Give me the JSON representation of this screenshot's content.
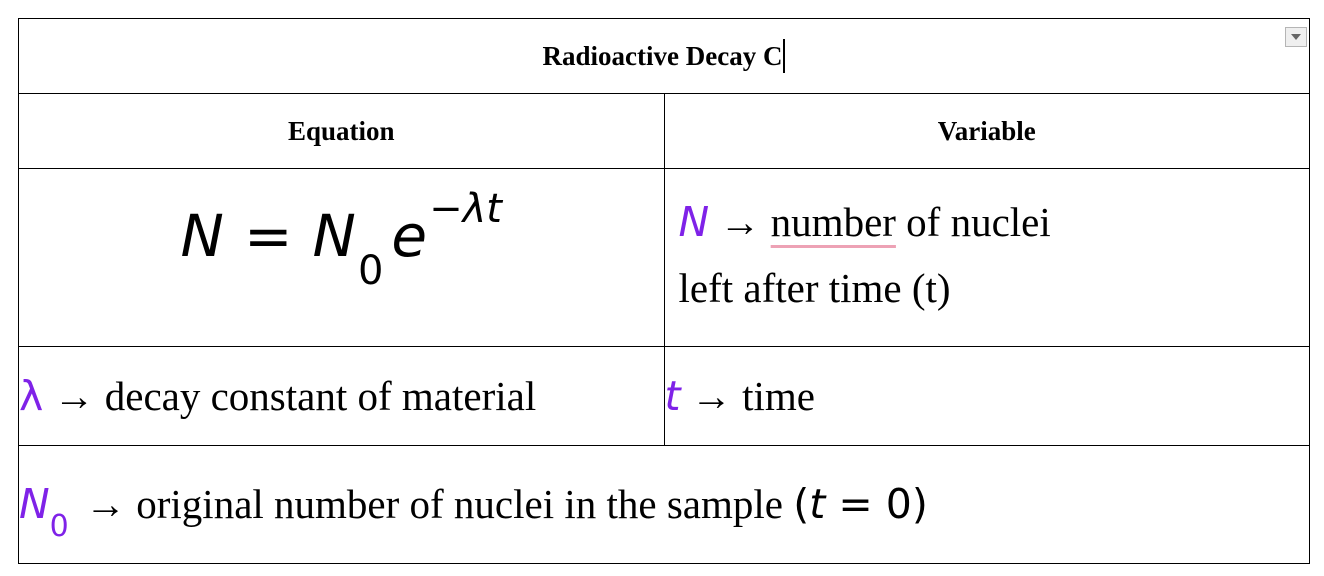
{
  "table": {
    "title": "Radioactive Decay C",
    "headers": {
      "equation": "Equation",
      "variable": "Variable"
    },
    "equation": {
      "lhs": "N",
      "equals": "=",
      "n": "N",
      "n_sub": "0",
      "base": "e",
      "exponent": "−λt"
    },
    "variables": {
      "N": {
        "symbol": "N",
        "arrow": "→",
        "word_underlined": "number",
        "rest_line1": " of nuclei",
        "line2": "left after time (t)"
      },
      "lambda": {
        "symbol": "λ",
        "arrow": "→",
        "text": " decay constant of material"
      },
      "t": {
        "symbol": "t",
        "arrow": "→",
        "text": " time"
      },
      "N0": {
        "symbol": "N",
        "sub": "0",
        "arrow": "→",
        "text": " original number of nuclei in the sample ",
        "condition_open": "(",
        "condition_var": "t",
        "condition_eq": " = 0",
        "condition_close": ")"
      }
    }
  },
  "colors": {
    "symbol": "#7f22e8",
    "spellcheck_underline": "#eda2b5"
  },
  "icons": {
    "dropdown": "chevron-down-icon"
  }
}
